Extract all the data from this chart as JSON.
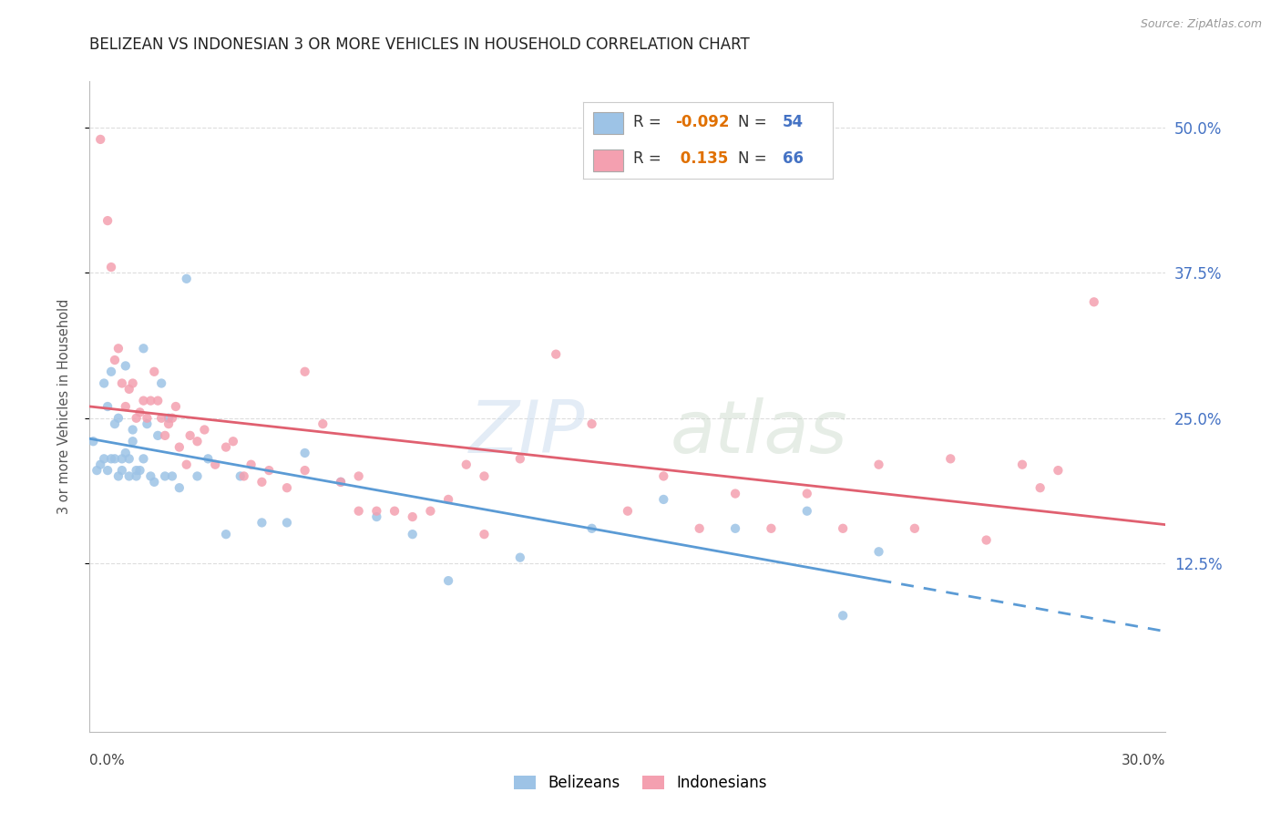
{
  "title": "BELIZEAN VS INDONESIAN 3 OR MORE VEHICLES IN HOUSEHOLD CORRELATION CHART",
  "source": "Source: ZipAtlas.com",
  "ylabel": "3 or more Vehicles in Household",
  "ytick_labels": [
    "12.5%",
    "25.0%",
    "37.5%",
    "50.0%"
  ],
  "ytick_values": [
    0.125,
    0.25,
    0.375,
    0.5
  ],
  "xlim": [
    0.0,
    0.3
  ],
  "ylim": [
    -0.02,
    0.54
  ],
  "color_belizean": "#9dc3e6",
  "color_indonesian": "#f4a0b0",
  "color_line_belizean": "#5b9bd5",
  "color_line_indonesian": "#e06070",
  "belizean_x": [
    0.001,
    0.002,
    0.003,
    0.004,
    0.004,
    0.005,
    0.005,
    0.006,
    0.006,
    0.007,
    0.007,
    0.008,
    0.008,
    0.009,
    0.009,
    0.01,
    0.01,
    0.011,
    0.011,
    0.012,
    0.012,
    0.013,
    0.013,
    0.014,
    0.015,
    0.015,
    0.016,
    0.017,
    0.018,
    0.019,
    0.02,
    0.021,
    0.022,
    0.023,
    0.025,
    0.027,
    0.03,
    0.033,
    0.038,
    0.042,
    0.048,
    0.055,
    0.06,
    0.07,
    0.08,
    0.09,
    0.1,
    0.12,
    0.14,
    0.16,
    0.18,
    0.2,
    0.21,
    0.22
  ],
  "belizean_y": [
    0.23,
    0.205,
    0.21,
    0.28,
    0.215,
    0.205,
    0.26,
    0.29,
    0.215,
    0.215,
    0.245,
    0.2,
    0.25,
    0.205,
    0.215,
    0.22,
    0.295,
    0.2,
    0.215,
    0.24,
    0.23,
    0.2,
    0.205,
    0.205,
    0.31,
    0.215,
    0.245,
    0.2,
    0.195,
    0.235,
    0.28,
    0.2,
    0.25,
    0.2,
    0.19,
    0.37,
    0.2,
    0.215,
    0.15,
    0.2,
    0.16,
    0.16,
    0.22,
    0.195,
    0.165,
    0.15,
    0.11,
    0.13,
    0.155,
    0.18,
    0.155,
    0.17,
    0.08,
    0.135
  ],
  "indonesian_x": [
    0.003,
    0.005,
    0.006,
    0.007,
    0.008,
    0.009,
    0.01,
    0.011,
    0.012,
    0.013,
    0.014,
    0.015,
    0.016,
    0.017,
    0.018,
    0.019,
    0.02,
    0.021,
    0.022,
    0.023,
    0.024,
    0.025,
    0.027,
    0.028,
    0.03,
    0.032,
    0.035,
    0.038,
    0.04,
    0.043,
    0.045,
    0.048,
    0.05,
    0.055,
    0.06,
    0.065,
    0.07,
    0.075,
    0.08,
    0.085,
    0.09,
    0.095,
    0.1,
    0.105,
    0.11,
    0.12,
    0.13,
    0.14,
    0.15,
    0.16,
    0.17,
    0.18,
    0.19,
    0.2,
    0.21,
    0.22,
    0.23,
    0.24,
    0.25,
    0.26,
    0.265,
    0.27,
    0.28,
    0.06,
    0.075,
    0.11
  ],
  "indonesian_y": [
    0.49,
    0.42,
    0.38,
    0.3,
    0.31,
    0.28,
    0.26,
    0.275,
    0.28,
    0.25,
    0.255,
    0.265,
    0.25,
    0.265,
    0.29,
    0.265,
    0.25,
    0.235,
    0.245,
    0.25,
    0.26,
    0.225,
    0.21,
    0.235,
    0.23,
    0.24,
    0.21,
    0.225,
    0.23,
    0.2,
    0.21,
    0.195,
    0.205,
    0.19,
    0.205,
    0.245,
    0.195,
    0.2,
    0.17,
    0.17,
    0.165,
    0.17,
    0.18,
    0.21,
    0.2,
    0.215,
    0.305,
    0.245,
    0.17,
    0.2,
    0.155,
    0.185,
    0.155,
    0.185,
    0.155,
    0.21,
    0.155,
    0.215,
    0.145,
    0.21,
    0.19,
    0.205,
    0.35,
    0.29,
    0.17,
    0.15
  ],
  "watermark_zip": "ZIP",
  "watermark_atlas": "atlas",
  "background_color": "#ffffff",
  "grid_color": "#dddddd",
  "title_fontsize": 12,
  "axis_label_color": "#555555",
  "right_tick_color": "#4472c4",
  "legend_r_color": "#333333",
  "legend_val_color_neg": "#e07000",
  "legend_val_color_pos": "#e07000",
  "legend_n_label_color": "#333333",
  "legend_n_val_color": "#4472c4"
}
